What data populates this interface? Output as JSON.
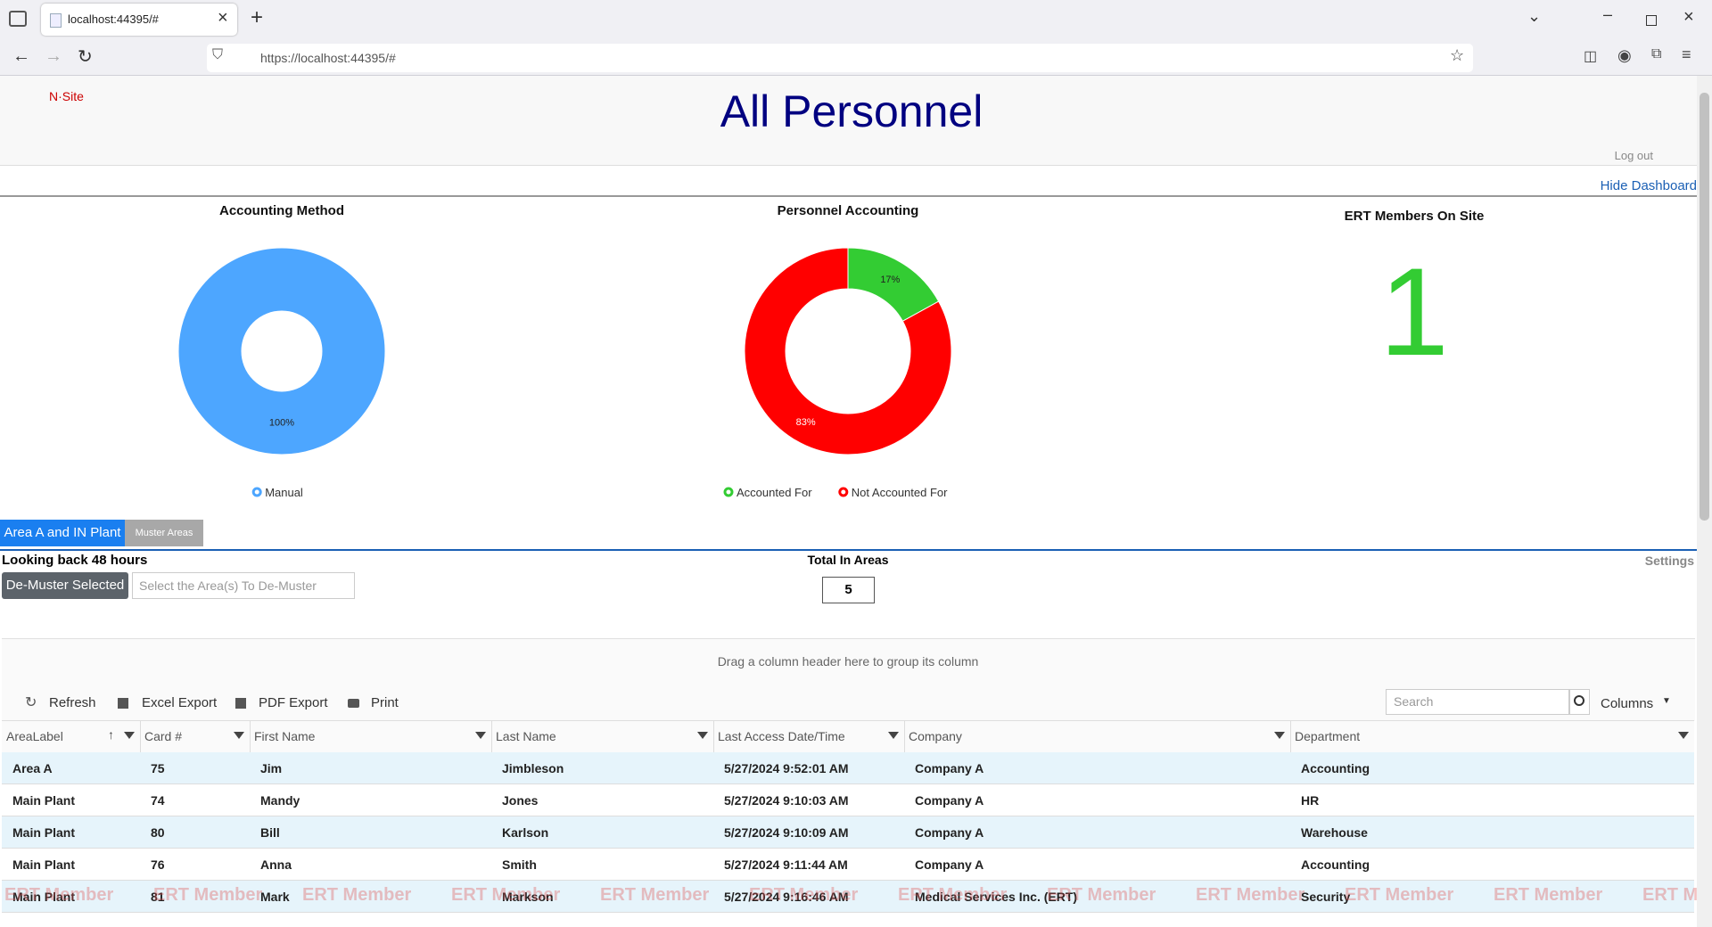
{
  "browser": {
    "tab_title": "localhost:44395/#",
    "url": "https://localhost:44395/#"
  },
  "header": {
    "brand": "N·Site",
    "title": "All Personnel",
    "logout": "Log out",
    "toggle": "Hide Dashboard"
  },
  "charts": [
    {
      "type": "pie",
      "title": "Accounting Method",
      "categories": [
        "Manual"
      ],
      "values": [
        100
      ],
      "value_labels": [
        "100%"
      ],
      "colors": [
        "#4da6ff"
      ]
    },
    {
      "type": "pie",
      "title": "Personnel Accounting",
      "categories": [
        "Accounted For",
        "Not Accounted For"
      ],
      "values": [
        17,
        83
      ],
      "value_labels": [
        "17%",
        "83%"
      ],
      "colors": [
        "#33cc33",
        "#ff0000"
      ]
    }
  ],
  "ert": {
    "title": "ERT Members On Site",
    "value": 1
  },
  "tabs": [
    "Area A and IN Plant",
    "Muster Areas"
  ],
  "muster": {
    "lookback": "Looking back 48 hours",
    "button": "De-Muster Selected",
    "placeholder": "Select the Area(s) To De-Muster",
    "total_label": "Total In Areas",
    "total": 5,
    "settings": "Settings"
  },
  "grid": {
    "group_hint": "Drag a column header here to group its column",
    "toolbar": [
      "Refresh",
      "Excel Export",
      "PDF Export",
      "Print"
    ],
    "search_placeholder": "Search",
    "columns_button": "Columns",
    "columns": [
      "AreaLabel",
      "Card #",
      "First Name",
      "Last Name",
      "Last Access Date/Time",
      "Company",
      "Department"
    ],
    "rows": [
      [
        "Area A",
        75,
        "Jim",
        "Jimbleson",
        "5/27/2024 9:52:01 AM",
        "Company A",
        "Accounting"
      ],
      [
        "Main Plant",
        74,
        "Mandy",
        "Jones",
        "5/27/2024 9:10:03 AM",
        "Company A",
        "HR"
      ],
      [
        "Main Plant",
        80,
        "Bill",
        "Karlson",
        "5/27/2024 9:10:09 AM",
        "Company A",
        "Warehouse"
      ],
      [
        "Main Plant",
        76,
        "Anna",
        "Smith",
        "5/27/2024 9:11:44 AM",
        "Company A",
        "Accounting"
      ],
      [
        "Main Plant",
        81,
        "Mark",
        "Markson",
        "5/27/2024 9:16:46 AM",
        "Medical Services Inc. (ERT)",
        "Security"
      ]
    ],
    "watermark": "ERT Member"
  }
}
